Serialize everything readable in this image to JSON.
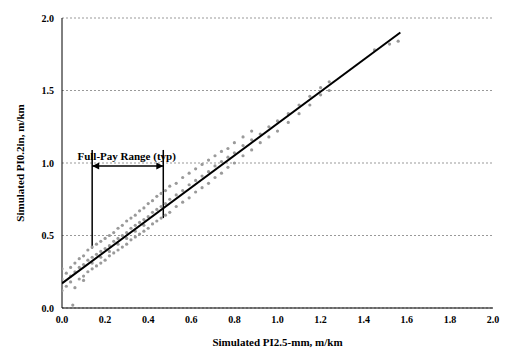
{
  "chart_data": {
    "type": "scatter",
    "xlabel": "Simulated PI2.5-mm, m/km",
    "ylabel": "Simulated PI0.2in, m/km",
    "xlim": [
      0,
      2
    ],
    "xticks": [
      {
        "value": 0,
        "label": "0.0"
      },
      {
        "value": 0.2,
        "label": "0.2"
      },
      {
        "value": 0.4,
        "label": "0.4"
      },
      {
        "value": 0.6,
        "label": "0.6"
      },
      {
        "value": 0.8,
        "label": "0.8"
      },
      {
        "value": 1,
        "label": "1.0"
      },
      {
        "value": 1.2,
        "label": "1.2"
      },
      {
        "value": 1.4,
        "label": "1.4"
      },
      {
        "value": 1.6,
        "label": "1.6"
      },
      {
        "value": 1.8,
        "label": "1.8"
      },
      {
        "value": 2,
        "label": "2.0"
      }
    ],
    "ylim": [
      0,
      2
    ],
    "yticks": [
      {
        "value": 0,
        "label": "0.0"
      },
      {
        "value": 0.5,
        "label": "0.5"
      },
      {
        "value": 1,
        "label": "1.0"
      },
      {
        "value": 1.5,
        "label": "1.5"
      },
      {
        "value": 2,
        "label": "2.0"
      }
    ],
    "grid": true,
    "series": [
      {
        "type": "scatter",
        "color": "#9a9a9a",
        "marker": "circle",
        "points": [
          [
            0.0,
            0.12
          ],
          [
            0.0,
            0.2
          ],
          [
            0.0,
            0.27
          ],
          [
            0.02,
            0.15
          ],
          [
            0.02,
            0.24
          ],
          [
            0.04,
            0.18
          ],
          [
            0.04,
            0.28
          ],
          [
            0.04,
            0.22
          ],
          [
            0.05,
            0.02
          ],
          [
            0.06,
            0.14
          ],
          [
            0.06,
            0.25
          ],
          [
            0.06,
            0.31
          ],
          [
            0.08,
            0.2
          ],
          [
            0.08,
            0.28
          ],
          [
            0.08,
            0.34
          ],
          [
            0.1,
            0.22
          ],
          [
            0.1,
            0.3
          ],
          [
            0.1,
            0.36
          ],
          [
            0.1,
            0.19
          ],
          [
            0.12,
            0.25
          ],
          [
            0.12,
            0.33
          ],
          [
            0.12,
            0.4
          ],
          [
            0.14,
            0.27
          ],
          [
            0.14,
            0.35
          ],
          [
            0.14,
            0.42
          ],
          [
            0.14,
            0.31
          ],
          [
            0.16,
            0.29
          ],
          [
            0.16,
            0.37
          ],
          [
            0.16,
            0.44
          ],
          [
            0.18,
            0.31
          ],
          [
            0.18,
            0.39
          ],
          [
            0.18,
            0.46
          ],
          [
            0.18,
            0.35
          ],
          [
            0.2,
            0.33
          ],
          [
            0.2,
            0.41
          ],
          [
            0.2,
            0.48
          ],
          [
            0.22,
            0.36
          ],
          [
            0.22,
            0.43
          ],
          [
            0.22,
            0.5
          ],
          [
            0.22,
            0.39
          ],
          [
            0.24,
            0.38
          ],
          [
            0.24,
            0.46
          ],
          [
            0.24,
            0.52
          ],
          [
            0.26,
            0.4
          ],
          [
            0.26,
            0.48
          ],
          [
            0.26,
            0.55
          ],
          [
            0.26,
            0.44
          ],
          [
            0.28,
            0.42
          ],
          [
            0.28,
            0.5
          ],
          [
            0.28,
            0.57
          ],
          [
            0.3,
            0.44
          ],
          [
            0.3,
            0.52
          ],
          [
            0.3,
            0.6
          ],
          [
            0.3,
            0.48
          ],
          [
            0.32,
            0.47
          ],
          [
            0.32,
            0.55
          ],
          [
            0.32,
            0.62
          ],
          [
            0.34,
            0.49
          ],
          [
            0.34,
            0.57
          ],
          [
            0.34,
            0.64
          ],
          [
            0.34,
            0.53
          ],
          [
            0.36,
            0.51
          ],
          [
            0.36,
            0.59
          ],
          [
            0.36,
            0.67
          ],
          [
            0.38,
            0.53
          ],
          [
            0.38,
            0.61
          ],
          [
            0.38,
            0.69
          ],
          [
            0.38,
            0.57
          ],
          [
            0.4,
            0.55
          ],
          [
            0.4,
            0.63
          ],
          [
            0.4,
            0.72
          ],
          [
            0.42,
            0.58
          ],
          [
            0.42,
            0.66
          ],
          [
            0.42,
            0.74
          ],
          [
            0.44,
            0.6
          ],
          [
            0.44,
            0.68
          ],
          [
            0.44,
            0.77
          ],
          [
            0.46,
            0.62
          ],
          [
            0.46,
            0.7
          ],
          [
            0.46,
            0.79
          ],
          [
            0.48,
            0.64
          ],
          [
            0.48,
            0.72
          ],
          [
            0.48,
            0.81
          ],
          [
            0.5,
            0.66
          ],
          [
            0.5,
            0.75
          ],
          [
            0.5,
            0.84
          ],
          [
            0.53,
            0.7
          ],
          [
            0.53,
            0.78
          ],
          [
            0.53,
            0.86
          ],
          [
            0.56,
            0.73
          ],
          [
            0.56,
            0.81
          ],
          [
            0.56,
            0.9
          ],
          [
            0.59,
            0.76
          ],
          [
            0.59,
            0.85
          ],
          [
            0.59,
            0.93
          ],
          [
            0.62,
            0.8
          ],
          [
            0.62,
            0.88
          ],
          [
            0.62,
            0.96
          ],
          [
            0.65,
            0.83
          ],
          [
            0.65,
            0.91
          ],
          [
            0.65,
            0.99
          ],
          [
            0.68,
            0.86
          ],
          [
            0.68,
            0.94
          ],
          [
            0.68,
            1.02
          ],
          [
            0.71,
            0.9
          ],
          [
            0.71,
            0.98
          ],
          [
            0.71,
            1.05
          ],
          [
            0.74,
            0.93
          ],
          [
            0.74,
            1.01
          ],
          [
            0.74,
            1.08
          ],
          [
            0.77,
            0.97
          ],
          [
            0.77,
            1.04
          ],
          [
            0.77,
            1.1
          ],
          [
            0.8,
            1.0
          ],
          [
            0.8,
            1.07
          ],
          [
            0.8,
            1.14
          ],
          [
            0.84,
            1.05
          ],
          [
            0.84,
            1.12
          ],
          [
            0.84,
            1.18
          ],
          [
            0.88,
            1.09
          ],
          [
            0.88,
            1.16
          ],
          [
            0.88,
            1.22
          ],
          [
            0.92,
            1.14
          ],
          [
            0.92,
            1.2
          ],
          [
            0.96,
            1.18
          ],
          [
            0.96,
            1.25
          ],
          [
            1.0,
            1.22
          ],
          [
            1.0,
            1.29
          ],
          [
            1.05,
            1.28
          ],
          [
            1.05,
            1.34
          ],
          [
            1.1,
            1.34
          ],
          [
            1.1,
            1.4
          ],
          [
            1.15,
            1.4
          ],
          [
            1.15,
            1.46
          ],
          [
            1.2,
            1.47
          ],
          [
            1.2,
            1.52
          ],
          [
            1.24,
            1.5
          ],
          [
            1.24,
            1.56
          ],
          [
            1.45,
            1.78
          ],
          [
            1.52,
            1.82
          ],
          [
            1.56,
            1.84
          ]
        ]
      },
      {
        "type": "line",
        "color": "#000000",
        "points": [
          [
            0,
            0.17
          ],
          [
            1.57,
            1.9
          ]
        ]
      }
    ],
    "annotations": [
      {
        "text": "Full-Pay Range (typ)",
        "x": 0.3,
        "y": 1.05,
        "range_x": [
          0.14,
          0.47
        ],
        "range_y_bottom": [
          0.41,
          0.62
        ],
        "range_y_top": 1.09,
        "arrow_y": 0.98,
        "color": "#000000"
      }
    ]
  }
}
